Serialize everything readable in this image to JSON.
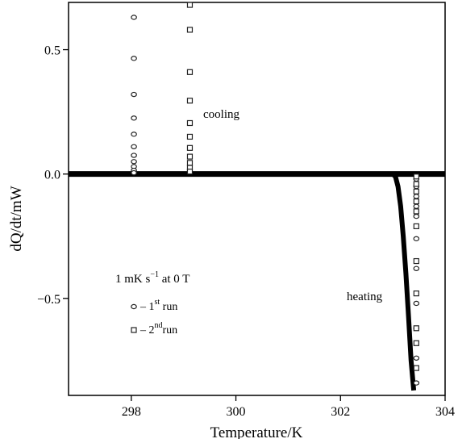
{
  "chart_data": {
    "type": "scatter",
    "title": "",
    "xlabel": "Temperature/K",
    "ylabel": "dQ/dt/mW",
    "xlim": [
      296.8,
      304.0
    ],
    "ylim": [
      -0.89,
      0.69
    ],
    "grid": false,
    "legend_position": "left-middle",
    "x_ticks": [
      298,
      300,
      302,
      304
    ],
    "x_tick_labels": [
      "298",
      "300",
      "302",
      "304"
    ],
    "y_ticks": [
      0.5,
      0.0,
      -0.5
    ],
    "y_tick_labels": [
      "0.5",
      "0.0",
      "−0.5"
    ],
    "annotations": {
      "cooling": "cooling",
      "heating": "heating",
      "rate_prefix": "1 mK s",
      "rate_sup": "−1",
      "rate_suffix": " at 0 T"
    },
    "legend": [
      {
        "marker": "circle",
        "prefix": "– 1",
        "sup": "st",
        "suffix": " run"
      },
      {
        "marker": "square",
        "prefix": "– 2",
        "sup": "nd",
        "suffix": "run"
      }
    ],
    "baseline": {
      "x": [
        296.8,
        304.0
      ],
      "y": [
        0.0,
        0.0
      ]
    },
    "heating_curve": {
      "x": [
        303.0,
        303.05,
        303.1,
        303.15,
        303.2,
        303.25,
        303.3,
        303.35,
        303.4
      ],
      "y": [
        0.0,
        -0.01,
        -0.05,
        -0.13,
        -0.25,
        -0.4,
        -0.57,
        -0.75,
        -0.87
      ]
    },
    "series": [
      {
        "name": "1st run",
        "marker": "circle",
        "points": [
          [
            298.05,
            0.63
          ],
          [
            298.05,
            0.465
          ],
          [
            298.05,
            0.32
          ],
          [
            298.05,
            0.225
          ],
          [
            298.05,
            0.16
          ],
          [
            298.05,
            0.11
          ],
          [
            298.05,
            0.075
          ],
          [
            298.05,
            0.05
          ],
          [
            298.05,
            0.03
          ],
          [
            298.05,
            0.015
          ],
          [
            298.05,
            0.005
          ],
          [
            303.45,
            -0.02
          ],
          [
            303.45,
            -0.05
          ],
          [
            303.45,
            -0.09
          ],
          [
            303.45,
            -0.13
          ],
          [
            303.45,
            -0.17
          ],
          [
            303.45,
            -0.26
          ],
          [
            303.45,
            -0.38
          ],
          [
            303.45,
            -0.52
          ],
          [
            303.45,
            -0.62
          ],
          [
            303.45,
            -0.74
          ],
          [
            303.45,
            -0.84
          ]
        ]
      },
      {
        "name": "2nd run",
        "marker": "square",
        "points": [
          [
            299.12,
            0.68
          ],
          [
            299.12,
            0.58
          ],
          [
            299.12,
            0.41
          ],
          [
            299.12,
            0.295
          ],
          [
            299.12,
            0.205
          ],
          [
            299.12,
            0.15
          ],
          [
            299.12,
            0.105
          ],
          [
            299.12,
            0.07
          ],
          [
            299.12,
            0.045
          ],
          [
            299.12,
            0.025
          ],
          [
            299.12,
            0.01
          ],
          [
            303.45,
            -0.01
          ],
          [
            303.45,
            -0.04
          ],
          [
            303.45,
            -0.07
          ],
          [
            303.45,
            -0.11
          ],
          [
            303.45,
            -0.15
          ],
          [
            303.45,
            -0.21
          ],
          [
            303.45,
            -0.35
          ],
          [
            303.45,
            -0.48
          ],
          [
            303.45,
            -0.62
          ],
          [
            303.45,
            -0.68
          ],
          [
            303.45,
            -0.78
          ]
        ]
      }
    ]
  }
}
